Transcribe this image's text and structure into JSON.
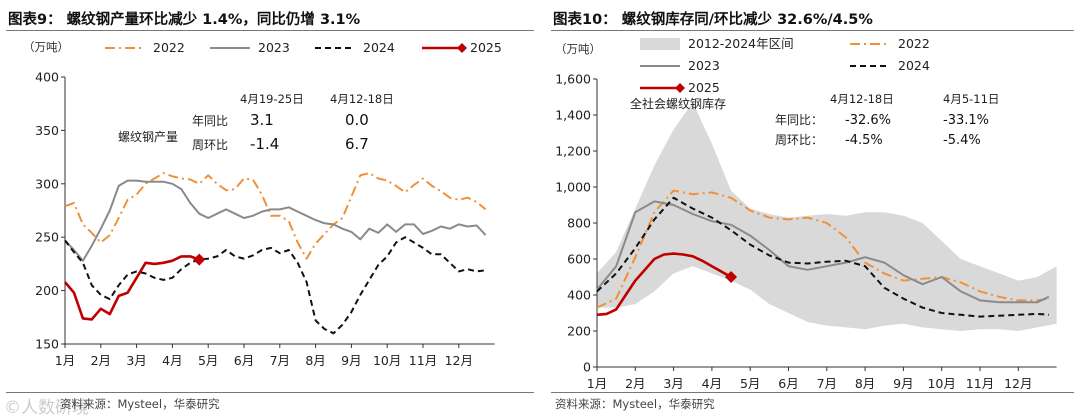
{
  "figures": [
    {
      "title": "图表9： 螺纹钢产量环比减少 1.4%，同比仍增 3.1%",
      "source": "资料来源：Mysteel，华泰研究",
      "watermark": "©人数研境",
      "colors": {
        "2022": "#f0913a",
        "2023": "#8a8a8a",
        "2024": "#111111",
        "2025": "#c00000"
      },
      "chart_data": {
        "type": "line",
        "unit_label": "（万吨）",
        "x_ticks": [
          "1月",
          "2月",
          "3月",
          "4月",
          "5月",
          "6月",
          "7月",
          "8月",
          "9月",
          "10月",
          "11月",
          "12月"
        ],
        "ylim": [
          150,
          400
        ],
        "y_ticks": [
          150,
          200,
          250,
          300,
          350,
          400
        ],
        "legend": [
          "2022",
          "2023",
          "2024",
          "2025"
        ],
        "series": [
          {
            "name": "2022",
            "style": "dash-dot",
            "x": [
              1,
              1.25,
              1.5,
              1.75,
              2,
              2.25,
              2.5,
              2.75,
              3,
              3.25,
              3.5,
              3.75,
              4,
              4.25,
              4.5,
              4.75,
              5,
              5.25,
              5.5,
              5.75,
              6,
              6.25,
              6.5,
              6.75,
              7,
              7.25,
              7.5,
              7.75,
              8,
              8.25,
              8.5,
              8.75,
              9,
              9.25,
              9.5,
              9.75,
              10,
              10.25,
              10.5,
              10.75,
              11,
              11.25,
              11.5,
              11.75,
              12,
              12.25,
              12.5,
              12.75
            ],
            "values": [
              279,
              282,
              262,
              254,
              245,
              252,
              268,
              285,
              290,
              300,
              305,
              310,
              307,
              305,
              304,
              300,
              308,
              300,
              294,
              295,
              305,
              304,
              290,
              270,
              270,
              265,
              245,
              230,
              244,
              253,
              262,
              268,
              288,
              308,
              310,
              305,
              303,
              298,
              292,
              299,
              305,
              298,
              293,
              287,
              285,
              287,
              283,
              276
            ]
          },
          {
            "name": "2023",
            "style": "solid",
            "x": [
              1,
              1.25,
              1.5,
              1.75,
              2,
              2.25,
              2.5,
              2.75,
              3,
              3.25,
              3.5,
              3.75,
              4,
              4.25,
              4.5,
              4.75,
              5,
              5.25,
              5.5,
              5.75,
              6,
              6.25,
              6.5,
              6.75,
              7,
              7.25,
              7.5,
              7.75,
              8,
              8.25,
              8.5,
              8.75,
              9,
              9.25,
              9.5,
              9.75,
              10,
              10.25,
              10.5,
              10.75,
              11,
              11.25,
              11.5,
              11.75,
              12,
              12.25,
              12.5,
              12.75
            ],
            "values": [
              247,
              238,
              228,
              242,
              258,
              275,
              298,
              303,
              303,
              302,
              302,
              302,
              300,
              295,
              282,
              272,
              268,
              272,
              276,
              272,
              268,
              270,
              274,
              276,
              276,
              278,
              274,
              270,
              266,
              263,
              262,
              258,
              255,
              248,
              258,
              254,
              262,
              255,
              262,
              262,
              253,
              256,
              260,
              258,
              262,
              260,
              261,
              252
            ]
          },
          {
            "name": "2024",
            "style": "dash",
            "x": [
              1,
              1.25,
              1.5,
              1.75,
              2,
              2.25,
              2.5,
              2.75,
              3,
              3.25,
              3.5,
              3.75,
              4,
              4.25,
              4.5,
              4.75,
              5,
              5.25,
              5.5,
              5.75,
              6,
              6.25,
              6.5,
              6.75,
              7,
              7.25,
              7.5,
              7.75,
              8,
              8.25,
              8.5,
              8.75,
              9,
              9.25,
              9.5,
              9.75,
              10,
              10.25,
              10.5,
              10.75,
              11,
              11.25,
              11.5,
              11.75,
              12,
              12.25,
              12.5,
              12.75
            ],
            "values": [
              247,
              236,
              226,
              205,
              196,
              192,
              205,
              215,
              218,
              216,
              212,
              210,
              212,
              220,
              226,
              229,
              230,
              232,
              238,
              232,
              230,
              233,
              238,
              240,
              235,
              238,
              226,
              208,
              172,
              164,
              160,
              168,
              180,
              196,
              210,
              224,
              232,
              245,
              250,
              245,
              240,
              234,
              234,
              226,
              218,
              220,
              218,
              219
            ]
          },
          {
            "name": "2025",
            "style": "solid",
            "x": [
              1,
              1.25,
              1.5,
              1.75,
              2,
              2.25,
              2.5,
              2.75,
              3,
              3.25,
              3.5,
              3.75,
              4,
              4.25,
              4.5,
              4.75
            ],
            "values": [
              208,
              198,
              174,
              173,
              183,
              178,
              195,
              198,
              212,
              226,
              225,
              226,
              228,
              232,
              232,
              229
            ]
          }
        ],
        "text_box": {
          "label": "螺纹钢产量",
          "col_headers": [
            "4月19-25日",
            "4月12-18日"
          ],
          "rows": [
            {
              "label": "年同比",
              "values": [
                "3.1",
                "0.0"
              ]
            },
            {
              "label": "周环比",
              "values": [
                "-1.4",
                "6.7"
              ]
            }
          ]
        }
      }
    },
    {
      "title": "图表10： 螺纹钢库存同/环比减少 32.6%/4.5%",
      "source": "资料来源：Mysteel，华泰研究",
      "colors": {
        "range": "#d9d9d9",
        "2022": "#f0913a",
        "2023": "#8a8a8a",
        "2024": "#111111",
        "2025": "#c00000"
      },
      "chart_data": {
        "type": "line",
        "unit_label": "（万吨）",
        "x_ticks": [
          "1月",
          "2月",
          "3月",
          "4月",
          "5月",
          "6月",
          "7月",
          "8月",
          "9月",
          "10月",
          "11月",
          "12月"
        ],
        "ylim": [
          0,
          1600
        ],
        "y_ticks": [
          "0",
          "200",
          "400",
          "600",
          "800",
          "1,000",
          "1,200",
          "1,400",
          "1,600"
        ],
        "legend": [
          "2012-2024年区间",
          "2022",
          "2023",
          "2024",
          "2025"
        ],
        "range": {
          "x": [
            1,
            1.5,
            2,
            2.5,
            3,
            3.5,
            4,
            4.5,
            5,
            5.5,
            6,
            6.5,
            7,
            7.5,
            8,
            8.5,
            9,
            9.5,
            10,
            10.5,
            11,
            11.5,
            12,
            12.5,
            13
          ],
          "upper": [
            520,
            640,
            880,
            1120,
            1320,
            1470,
            1240,
            980,
            880,
            850,
            830,
            840,
            850,
            840,
            860,
            860,
            840,
            800,
            700,
            600,
            560,
            520,
            480,
            500,
            560
          ],
          "lower": [
            330,
            330,
            350,
            420,
            520,
            560,
            520,
            480,
            430,
            350,
            300,
            250,
            230,
            220,
            210,
            230,
            240,
            220,
            210,
            200,
            210,
            210,
            200,
            220,
            240
          ]
        },
        "series": [
          {
            "name": "2022",
            "style": "dash-dot",
            "x": [
              1,
              1.5,
              2,
              2.5,
              3,
              3.5,
              4,
              4.5,
              5,
              5.5,
              6,
              6.5,
              7,
              7.5,
              8,
              8.5,
              9,
              9.5,
              10,
              10.5,
              11,
              11.5,
              12,
              12.5,
              12.8
            ],
            "values": [
              330,
              380,
              610,
              860,
              980,
              960,
              970,
              940,
              870,
              830,
              820,
              830,
              800,
              720,
              580,
              520,
              480,
              490,
              500,
              470,
              420,
              390,
              370,
              370,
              380
            ]
          },
          {
            "name": "2023",
            "style": "solid",
            "x": [
              1,
              1.5,
              2,
              2.5,
              3,
              3.5,
              4,
              4.5,
              5,
              5.5,
              6,
              6.5,
              7,
              7.5,
              8,
              8.5,
              9,
              9.5,
              10,
              10.5,
              11,
              11.5,
              12,
              12.5,
              12.8
            ],
            "values": [
              430,
              560,
              860,
              920,
              900,
              850,
              810,
              790,
              730,
              650,
              560,
              540,
              560,
              580,
              610,
              580,
              510,
              460,
              500,
              420,
              370,
              360,
              360,
              360,
              390
            ]
          },
          {
            "name": "2024",
            "style": "dash",
            "x": [
              1,
              1.5,
              2,
              2.5,
              3,
              3.5,
              4,
              4.5,
              5,
              5.5,
              6,
              6.5,
              7,
              7.5,
              8,
              8.5,
              9,
              9.5,
              10,
              10.5,
              11,
              11.5,
              12,
              12.5,
              12.8
            ],
            "values": [
              420,
              520,
              660,
              820,
              940,
              880,
              830,
              760,
              680,
              620,
              580,
              575,
              585,
              590,
              560,
              440,
              380,
              330,
              300,
              290,
              280,
              285,
              290,
              295,
              290
            ]
          },
          {
            "name": "2025",
            "style": "solid",
            "x": [
              1,
              1.25,
              1.5,
              1.75,
              2,
              2.25,
              2.5,
              2.75,
              3,
              3.25,
              3.5,
              3.75,
              4,
              4.25,
              4.5
            ],
            "values": [
              290,
              295,
              320,
              400,
              480,
              540,
              600,
              625,
              630,
              625,
              615,
              590,
              560,
              530,
              500
            ]
          }
        ],
        "text_box": {
          "label": "全社会螺纹钢库存",
          "col_headers": [
            "4月12-18日",
            "4月5-11日"
          ],
          "rows": [
            {
              "label": "年同比：",
              "values": [
                "-32.6%",
                "-33.1%"
              ]
            },
            {
              "label": "周环比：",
              "values": [
                "-4.5%",
                "-5.4%"
              ]
            }
          ]
        }
      }
    }
  ]
}
